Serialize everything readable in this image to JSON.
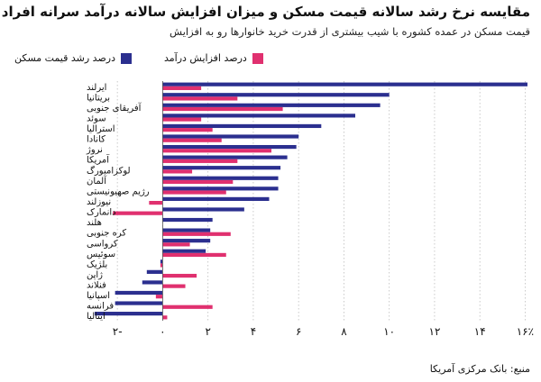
{
  "chart_data": {
    "type": "bar",
    "orientation": "horizontal",
    "title": "مقایسه نرخ رشد سالانه قیمت مسکن و میزان افزایش سالانه درآمد سرانه افراد",
    "subtitle": "قیمت مسکن در عمده کشوره با شیب بیشتری از قدرت خرید خانوارها رو به افزایش",
    "source": "منبع: بانک مرکزی آمریکا",
    "categories": [
      "ایرلند",
      "بریتانیا",
      "آفریقای جنوبی",
      "سوئد",
      "استرالیا",
      "کانادا",
      "نروژ",
      "آمریکا",
      "لوکزامبورگ",
      "آلمان",
      "رژیم صهیونیستی",
      "نیوزلند",
      "دانمارک",
      "هلند",
      "کره جنوبی",
      "کرواسی",
      "سوئیس",
      "بلژیک",
      "ژاپن",
      "فنلاند",
      "اسپانیا",
      "فرانسه",
      "ایتالیا"
    ],
    "series": [
      {
        "name": "درصد رشد قیمت مسکن",
        "color": "#2b2f8f",
        "values": [
          16.1,
          10.0,
          9.6,
          8.5,
          7.0,
          6.0,
          5.9,
          5.5,
          5.2,
          5.1,
          5.1,
          4.7,
          3.6,
          2.2,
          2.1,
          2.1,
          1.9,
          -0.1,
          -0.7,
          -0.9,
          -2.1,
          -2.1,
          -3.0
        ]
      },
      {
        "name": "درصد افزایش درآمد",
        "color": "#e0306f",
        "values": [
          1.7,
          3.3,
          5.3,
          1.7,
          2.2,
          2.6,
          4.8,
          3.3,
          1.3,
          3.1,
          2.8,
          -0.6,
          -2.2,
          0.0,
          3.0,
          1.2,
          2.8,
          -0.1,
          1.5,
          1.0,
          -0.3,
          2.2,
          0.2
        ]
      }
    ],
    "x_ticks": [
      "۲-",
      "۰",
      "۲",
      "۴",
      "۶",
      "۸",
      "۱۰",
      "۱۲",
      "۱۴",
      "۱۶٪"
    ],
    "x_tick_values": [
      -2,
      0,
      2,
      4,
      6,
      8,
      10,
      12,
      14,
      16
    ],
    "xlim": [
      -3.2,
      16.3
    ],
    "grid": "vertical-dotted",
    "legend_position": "top"
  }
}
